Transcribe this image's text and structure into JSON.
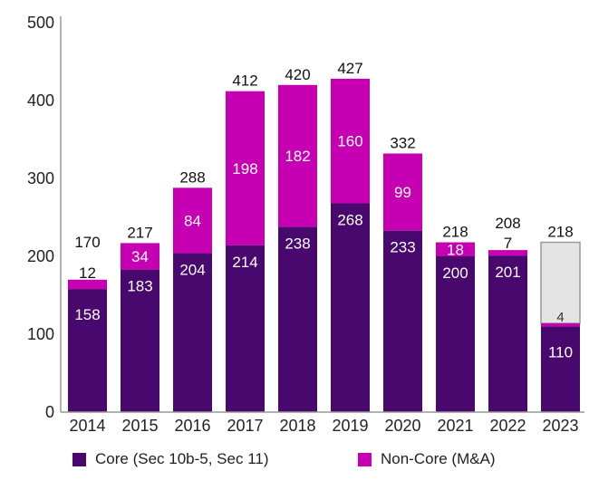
{
  "chart_data": {
    "type": "bar",
    "stacked": true,
    "title": "",
    "xlabel": "",
    "ylabel": "",
    "ylim": [
      0,
      500
    ],
    "yticks": [
      0,
      100,
      200,
      300,
      400,
      500
    ],
    "grid": false,
    "categories": [
      "2014",
      "2015",
      "2016",
      "2017",
      "2018",
      "2019",
      "2020",
      "2021",
      "2022",
      "2023"
    ],
    "series": [
      {
        "name": "Core (Sec 10b-5, Sec 11)",
        "color": "#48086e",
        "values": [
          158,
          183,
          204,
          214,
          238,
          268,
          233,
          200,
          201,
          110
        ]
      },
      {
        "name": "Non-Core (M&A)",
        "color": "#c600b2",
        "values": [
          12,
          34,
          84,
          198,
          182,
          160,
          99,
          18,
          7,
          4
        ]
      }
    ],
    "totals": [
      170,
      217,
      288,
      412,
      420,
      427,
      332,
      218,
      208,
      218
    ],
    "projection": {
      "category": "2023",
      "total": 218,
      "color": "#e4e4e4",
      "border": "#999999"
    },
    "legend": {
      "position": "bottom",
      "entries": [
        "Core (Sec 10b-5, Sec 11)",
        "Non-Core (M&A)"
      ]
    }
  }
}
